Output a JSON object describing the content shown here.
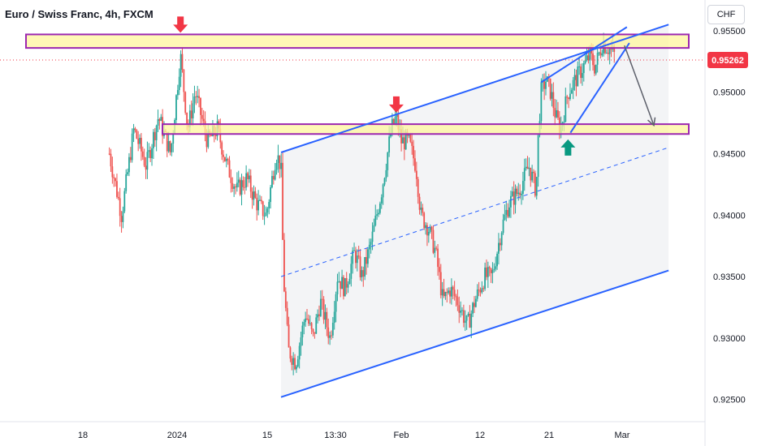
{
  "header": {
    "title": "Euro / Swiss Franc, 4h, FXCM"
  },
  "currency_button": "CHF",
  "colors": {
    "bull": "#26a69a",
    "bear": "#ef5350",
    "channel": "#2962ff",
    "zone_fill": "#fff59d",
    "zone_border": "#9c27b0",
    "arrow_red": "#f23645",
    "arrow_green": "#089981",
    "price_badge": "#f23645",
    "projection": "#5d606b"
  },
  "chart_data": {
    "type": "candlestick",
    "title": "Euro / Swiss Franc, 4h, FXCM",
    "timeframe": "4h",
    "x_axis_labels": [
      "18",
      "2024",
      "15",
      "13:30",
      "Feb",
      "12",
      "21",
      "Mar"
    ],
    "y_axis_labels": [
      "0.95500",
      "0.95000",
      "0.94500",
      "0.94000",
      "0.93500",
      "0.93000",
      "0.92500"
    ],
    "ylim": [
      0.9232,
      0.9575
    ],
    "current_price": "0.95262",
    "price_path": [
      [
        -20,
        0.945
      ],
      [
        -15,
        0.94
      ],
      [
        -10,
        0.947
      ],
      [
        -5,
        0.944
      ],
      [
        0,
        0.948
      ],
      [
        5,
        0.945
      ],
      [
        9,
        0.953
      ],
      [
        12,
        0.947
      ],
      [
        15,
        0.95
      ],
      [
        20,
        0.946
      ],
      [
        24,
        0.947
      ],
      [
        28,
        0.944
      ],
      [
        32,
        0.942
      ],
      [
        36,
        0.943
      ],
      [
        40,
        0.941
      ],
      [
        44,
        0.94
      ],
      [
        48,
        0.945
      ],
      [
        50,
        0.944
      ],
      [
        51,
        0.935
      ],
      [
        53,
        0.929
      ],
      [
        56,
        0.928
      ],
      [
        60,
        0.932
      ],
      [
        63,
        0.93
      ],
      [
        66,
        0.933
      ],
      [
        70,
        0.93
      ],
      [
        73,
        0.935
      ],
      [
        76,
        0.934
      ],
      [
        80,
        0.937
      ],
      [
        83,
        0.935
      ],
      [
        87,
        0.938
      ],
      [
        91,
        0.942
      ],
      [
        95,
        0.947
      ],
      [
        97,
        0.948
      ],
      [
        99,
        0.946
      ],
      [
        102,
        0.946
      ],
      [
        105,
        0.944
      ],
      [
        107,
        0.94
      ],
      [
        110,
        0.939
      ],
      [
        113,
        0.937
      ],
      [
        116,
        0.933
      ],
      [
        119,
        0.934
      ],
      [
        122,
        0.933
      ],
      [
        126,
        0.931
      ],
      [
        129,
        0.933
      ],
      [
        133,
        0.935
      ],
      [
        136,
        0.935
      ],
      [
        140,
        0.939
      ],
      [
        143,
        0.941
      ],
      [
        147,
        0.942
      ],
      [
        151,
        0.944
      ],
      [
        154,
        0.942
      ],
      [
        155,
        0.947
      ],
      [
        156,
        0.95
      ],
      [
        158,
        0.951
      ],
      [
        160,
        0.95
      ],
      [
        162,
        0.948
      ],
      [
        164,
        0.947
      ],
      [
        167,
        0.95
      ],
      [
        170,
        0.951
      ],
      [
        173,
        0.952
      ],
      [
        176,
        0.953
      ],
      [
        178,
        0.952
      ],
      [
        181,
        0.954
      ],
      [
        184,
        0.9535
      ],
      [
        186,
        0.953
      ]
    ],
    "horizontal_zones": [
      {
        "name": "resistance",
        "from": 0.9536,
        "to": 0.9547
      },
      {
        "name": "support",
        "from": 0.9466,
        "to": 0.9474
      }
    ],
    "ascending_channel": {
      "upper": [
        [
          50,
          0.9451
        ],
        [
          208,
          0.9555
        ]
      ],
      "middle": [
        [
          50,
          0.935
        ],
        [
          208,
          0.9455
        ]
      ],
      "lower": [
        [
          50,
          0.9252
        ],
        [
          208,
          0.9355
        ]
      ]
    },
    "rising_wedge": {
      "upper": [
        [
          156,
          0.9508
        ],
        [
          191,
          0.9553
        ]
      ],
      "lower": [
        [
          168,
          0.9467
        ],
        [
          192,
          0.954
        ]
      ]
    },
    "markers": [
      {
        "type": "arrow-down",
        "t": 9,
        "y": 0.9555,
        "color": "red"
      },
      {
        "type": "arrow-down",
        "t": 97,
        "y": 0.949,
        "color": "red"
      },
      {
        "type": "arrow-up",
        "t": 167,
        "y": 0.9455,
        "color": "green"
      }
    ],
    "projection": {
      "from": [
        190,
        0.9538
      ],
      "to": [
        202,
        0.9473
      ]
    }
  }
}
